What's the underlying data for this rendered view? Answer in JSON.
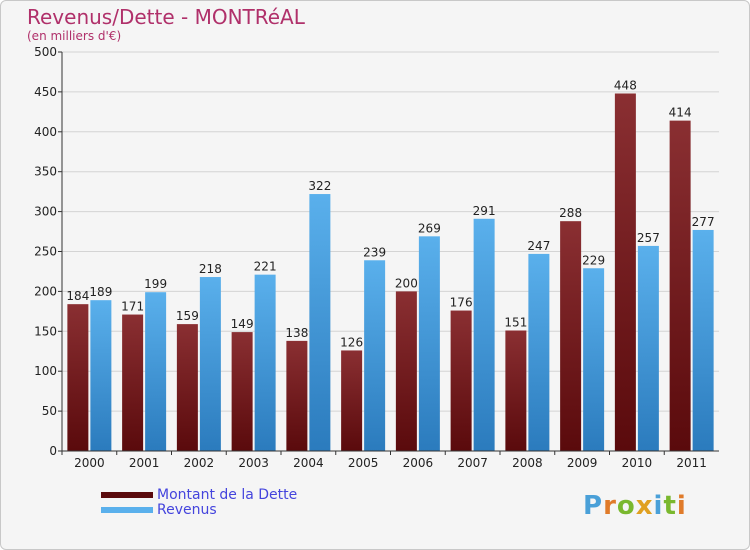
{
  "colors": {
    "title": "#b0306a",
    "debt_top": "#8a2f32",
    "debt_bottom": "#5a0a0c",
    "revenue_top": "#5ab0ec",
    "revenue_bottom": "#2b7bbd",
    "legend_text": "#4444dd"
  },
  "chart_data": {
    "type": "bar",
    "title": "Revenus/Dette - MONTRéAL",
    "subtitle": "(en milliers d'€)",
    "xlabel": "",
    "ylabel": "",
    "ylim": [
      0,
      500
    ],
    "yticks": [
      0,
      50,
      100,
      150,
      200,
      250,
      300,
      350,
      400,
      450,
      500
    ],
    "grid": true,
    "legend_position": "bottom-left",
    "categories": [
      "2000",
      "2001",
      "2002",
      "2003",
      "2004",
      "2005",
      "2006",
      "2007",
      "2008",
      "2009",
      "2010",
      "2011"
    ],
    "series": [
      {
        "name": "Montant de la Dette",
        "values": [
          184,
          171,
          159,
          149,
          138,
          126,
          200,
          176,
          151,
          288,
          448,
          414
        ]
      },
      {
        "name": "Revenus",
        "values": [
          189,
          199,
          218,
          221,
          322,
          239,
          269,
          291,
          247,
          229,
          257,
          277
        ]
      }
    ]
  },
  "logo": {
    "text": "Proxiti",
    "letters": [
      "P",
      "r",
      "o",
      "x",
      "i",
      "t",
      "i"
    ],
    "letter_colors": [
      "#4aa0d8",
      "#e07b2a",
      "#7ab82e",
      "#e0a020",
      "#4aa0d8",
      "#7ab82e",
      "#e07b2a"
    ]
  }
}
